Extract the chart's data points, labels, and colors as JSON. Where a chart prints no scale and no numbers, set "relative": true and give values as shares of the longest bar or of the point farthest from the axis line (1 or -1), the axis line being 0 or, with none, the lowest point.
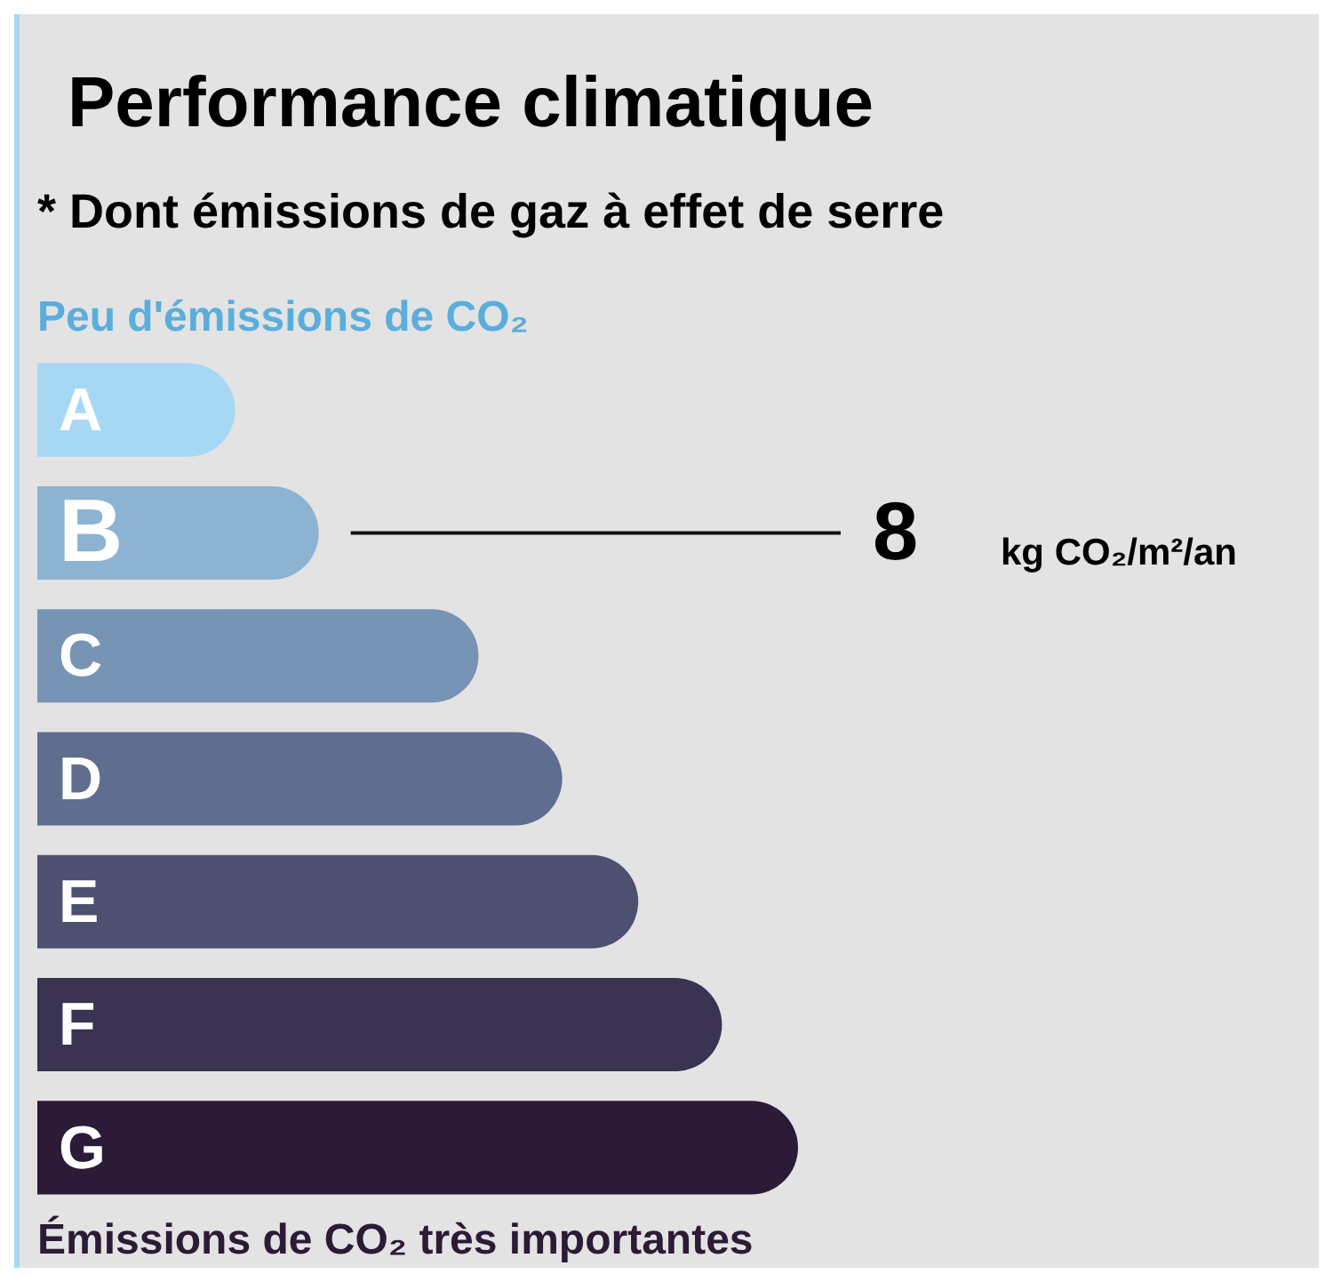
{
  "chart_data": {
    "type": "bar",
    "orientation": "horizontal",
    "relative": true,
    "title": "Performance climatique",
    "subtitle": "* Dont émissions de gaz à effet de serre",
    "categories": [
      "A",
      "B",
      "C",
      "D",
      "E",
      "F",
      "G"
    ],
    "values": [
      0.26,
      0.37,
      0.58,
      0.69,
      0.79,
      0.9,
      1
    ],
    "colors": [
      "#a6d8f4",
      "#8db3d3",
      "#7794b4",
      "#5f6d8f",
      "#4d5070",
      "#3a3452",
      "#2b1b36"
    ],
    "legend": false,
    "annotations": [
      "Peu d'émissions de CO₂",
      "8",
      "kg CO₂/m²/an",
      "Émissions de CO₂ très importantes"
    ]
  }
}
